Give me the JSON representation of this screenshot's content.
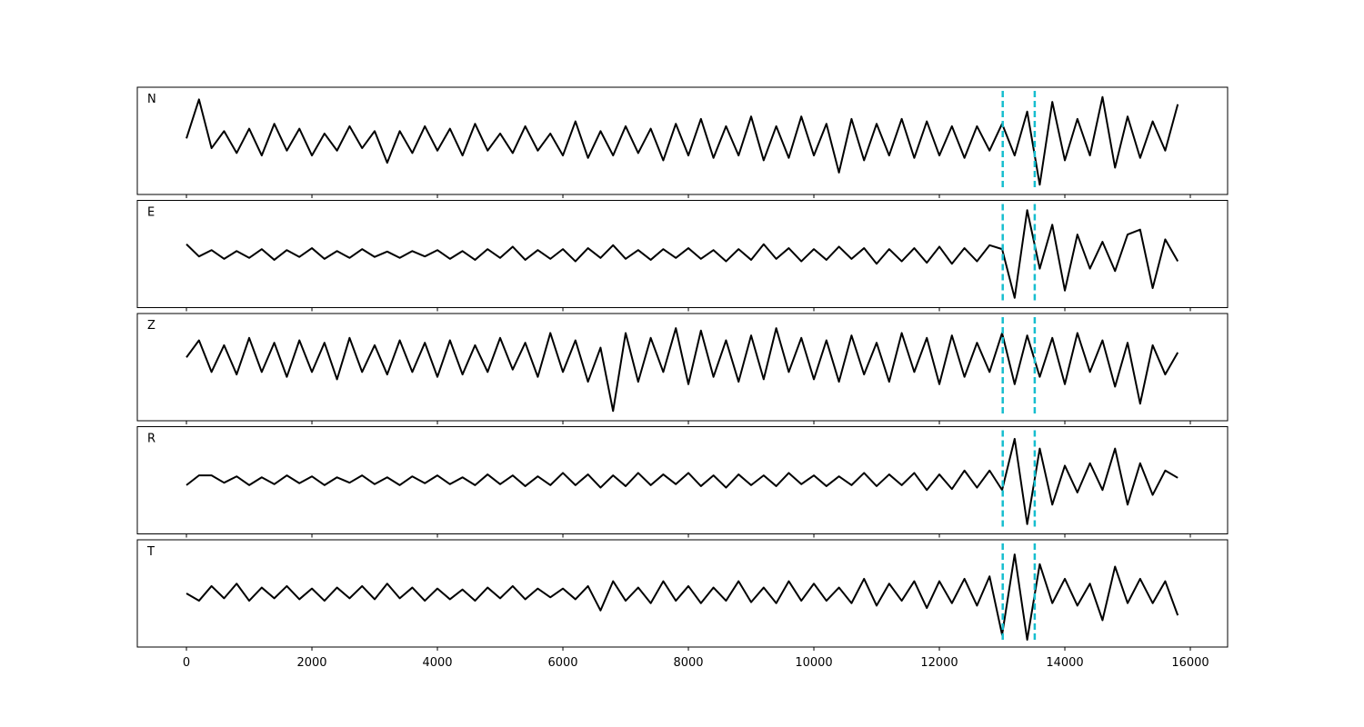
{
  "chart_data": {
    "type": "line",
    "color": "#000000",
    "vline_color": "#17becf",
    "xlim": [
      -783,
      16594
    ],
    "xticks": [
      0,
      2000,
      4000,
      6000,
      8000,
      10000,
      12000,
      14000,
      16000
    ],
    "ylim": [
      -1.1,
      1.1
    ],
    "vlines": [
      13010,
      13520
    ],
    "x": [
      0,
      200,
      400,
      600,
      800,
      1000,
      1200,
      1400,
      1600,
      1800,
      2000,
      2200,
      2400,
      2600,
      2800,
      3000,
      3200,
      3400,
      3600,
      3800,
      4000,
      4200,
      4400,
      4600,
      4800,
      5000,
      5200,
      5400,
      5600,
      5800,
      6000,
      6200,
      6400,
      6600,
      6800,
      7000,
      7200,
      7400,
      7600,
      7800,
      8000,
      8200,
      8400,
      8600,
      8800,
      9000,
      9200,
      9400,
      9600,
      9800,
      10000,
      10200,
      10400,
      10600,
      10800,
      11000,
      11200,
      11400,
      11600,
      11800,
      12000,
      12200,
      12400,
      12600,
      12800,
      13000,
      13200,
      13400,
      13600,
      13800,
      14000,
      14200,
      14400,
      14600,
      14800,
      15000,
      15200,
      15400,
      15600,
      15800
    ],
    "series": [
      {
        "name": "N",
        "values": [
          0.05,
          0.85,
          -0.15,
          0.2,
          -0.25,
          0.25,
          -0.3,
          0.35,
          -0.2,
          0.25,
          -0.3,
          0.15,
          -0.2,
          0.3,
          -0.15,
          0.2,
          -0.45,
          0.2,
          -0.25,
          0.3,
          -0.2,
          0.25,
          -0.3,
          0.35,
          -0.2,
          0.15,
          -0.25,
          0.3,
          -0.2,
          0.15,
          -0.3,
          0.4,
          -0.35,
          0.2,
          -0.3,
          0.3,
          -0.25,
          0.25,
          -0.4,
          0.35,
          -0.3,
          0.45,
          -0.35,
          0.3,
          -0.3,
          0.5,
          -0.4,
          0.3,
          -0.35,
          0.5,
          -0.3,
          0.35,
          -0.65,
          0.45,
          -0.4,
          0.35,
          -0.3,
          0.45,
          -0.35,
          0.4,
          -0.3,
          0.3,
          -0.35,
          0.3,
          -0.2,
          0.35,
          -0.3,
          0.6,
          -0.9,
          0.8,
          -0.4,
          0.45,
          -0.3,
          0.9,
          -0.55,
          0.5,
          -0.35,
          0.4,
          -0.2,
          0.75
        ]
      },
      {
        "name": "E",
        "values": [
          0.2,
          -0.05,
          0.08,
          -0.1,
          0.06,
          -0.08,
          0.1,
          -0.12,
          0.08,
          -0.06,
          0.12,
          -0.1,
          0.06,
          -0.08,
          0.1,
          -0.06,
          0.05,
          -0.08,
          0.06,
          -0.05,
          0.08,
          -0.1,
          0.06,
          -0.12,
          0.1,
          -0.08,
          0.15,
          -0.12,
          0.08,
          -0.1,
          0.1,
          -0.15,
          0.12,
          -0.08,
          0.18,
          -0.1,
          0.08,
          -0.12,
          0.1,
          -0.08,
          0.12,
          -0.1,
          0.08,
          -0.15,
          0.1,
          -0.12,
          0.2,
          -0.1,
          0.12,
          -0.15,
          0.1,
          -0.12,
          0.15,
          -0.1,
          0.12,
          -0.2,
          0.1,
          -0.15,
          0.12,
          -0.18,
          0.15,
          -0.2,
          0.12,
          -0.15,
          0.18,
          0.1,
          -0.9,
          0.9,
          -0.3,
          0.6,
          -0.75,
          0.4,
          -0.3,
          0.25,
          -0.35,
          0.4,
          0.5,
          -0.7,
          0.3,
          -0.15
        ]
      },
      {
        "name": "Z",
        "values": [
          0.2,
          0.55,
          -0.1,
          0.45,
          -0.15,
          0.6,
          -0.1,
          0.5,
          -0.2,
          0.55,
          -0.1,
          0.5,
          -0.25,
          0.6,
          -0.1,
          0.45,
          -0.15,
          0.55,
          -0.1,
          0.5,
          -0.2,
          0.55,
          -0.15,
          0.45,
          -0.1,
          0.6,
          -0.05,
          0.5,
          -0.2,
          0.7,
          -0.1,
          0.55,
          -0.3,
          0.4,
          -0.9,
          0.7,
          -0.3,
          0.6,
          -0.1,
          0.8,
          -0.35,
          0.75,
          -0.2,
          0.55,
          -0.3,
          0.65,
          -0.25,
          0.8,
          -0.1,
          0.6,
          -0.25,
          0.55,
          -0.3,
          0.65,
          -0.15,
          0.5,
          -0.3,
          0.7,
          -0.1,
          0.6,
          -0.35,
          0.65,
          -0.2,
          0.5,
          -0.1,
          0.7,
          -0.35,
          0.65,
          -0.2,
          0.6,
          -0.35,
          0.7,
          -0.1,
          0.55,
          -0.4,
          0.5,
          -0.75,
          0.45,
          -0.15,
          0.3
        ]
      },
      {
        "name": "R",
        "values": [
          -0.1,
          0.1,
          0.1,
          -0.05,
          0.08,
          -0.1,
          0.06,
          -0.08,
          0.1,
          -0.06,
          0.08,
          -0.1,
          0.06,
          -0.05,
          0.1,
          -0.08,
          0.06,
          -0.1,
          0.08,
          -0.06,
          0.1,
          -0.08,
          0.06,
          -0.1,
          0.12,
          -0.08,
          0.1,
          -0.12,
          0.08,
          -0.1,
          0.15,
          -0.1,
          0.12,
          -0.15,
          0.1,
          -0.12,
          0.15,
          -0.1,
          0.12,
          -0.08,
          0.15,
          -0.12,
          0.1,
          -0.15,
          0.12,
          -0.1,
          0.1,
          -0.12,
          0.15,
          -0.08,
          0.1,
          -0.12,
          0.08,
          -0.1,
          0.15,
          -0.12,
          0.12,
          -0.1,
          0.15,
          -0.2,
          0.12,
          -0.18,
          0.2,
          -0.15,
          0.2,
          -0.2,
          0.85,
          -0.9,
          0.65,
          -0.5,
          0.3,
          -0.25,
          0.35,
          -0.2,
          0.65,
          -0.5,
          0.35,
          -0.3,
          0.2,
          0.05
        ]
      },
      {
        "name": "T",
        "values": [
          0.0,
          -0.15,
          0.15,
          -0.1,
          0.2,
          -0.15,
          0.12,
          -0.1,
          0.15,
          -0.12,
          0.1,
          -0.15,
          0.12,
          -0.1,
          0.15,
          -0.12,
          0.2,
          -0.1,
          0.12,
          -0.15,
          0.1,
          -0.12,
          0.08,
          -0.15,
          0.12,
          -0.1,
          0.15,
          -0.12,
          0.1,
          -0.08,
          0.1,
          -0.12,
          0.15,
          -0.35,
          0.25,
          -0.15,
          0.12,
          -0.2,
          0.25,
          -0.15,
          0.15,
          -0.2,
          0.12,
          -0.15,
          0.25,
          -0.18,
          0.12,
          -0.2,
          0.25,
          -0.15,
          0.2,
          -0.15,
          0.12,
          -0.2,
          0.3,
          -0.25,
          0.2,
          -0.15,
          0.25,
          -0.3,
          0.25,
          -0.2,
          0.3,
          -0.25,
          0.35,
          -0.85,
          0.8,
          -0.95,
          0.6,
          -0.2,
          0.3,
          -0.25,
          0.2,
          -0.55,
          0.55,
          -0.2,
          0.3,
          -0.2,
          0.25,
          -0.45
        ]
      }
    ]
  }
}
